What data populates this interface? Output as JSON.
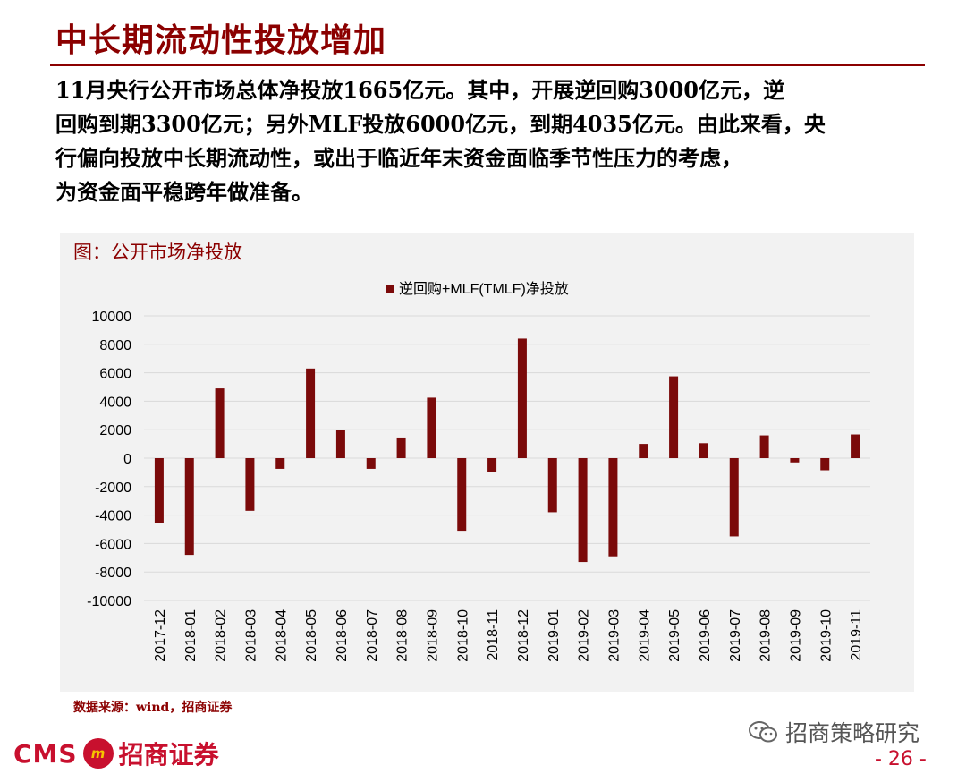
{
  "page": {
    "title": "中长期流动性投放增加",
    "body_lines": [
      "11月央行公开市场总体净投放1665亿元。其中，开展逆回购3000亿元，逆",
      "回购到期3300亿元；另外MLF投放6000亿元，到期4035亿元。由此来看，央",
      "行偏向投放中长期流动性，或出于临近年末资金面临季节性压力的考虑，",
      "为资金面平稳跨年做准备。"
    ],
    "source": "数据来源：wind，招商证券",
    "footer_brand_latin": "CMS",
    "footer_badge_glyph": "m",
    "footer_brand_cn": "招商证券",
    "wechat_account": "招商策略研究",
    "page_number": "- 26 -"
  },
  "colors": {
    "brand_red": "#8B0000",
    "bar": "#7B0A0A",
    "panel_bg": "#F2F2F2",
    "grid": "#D9D9D9"
  },
  "chart_data": {
    "type": "bar",
    "title": "图：公开市场净投放",
    "legend": "逆回购+MLF(TMLF)净投放",
    "legend_position": "top-center",
    "grid": true,
    "ylim": [
      -10000,
      10000
    ],
    "yticks": [
      10000,
      8000,
      6000,
      4000,
      2000,
      0,
      -2000,
      -4000,
      -6000,
      -8000,
      -10000
    ],
    "categories": [
      "2017-12",
      "2018-01",
      "2018-02",
      "2018-03",
      "2018-04",
      "2018-05",
      "2018-06",
      "2018-07",
      "2018-08",
      "2018-09",
      "2018-10",
      "2018-11",
      "2018-12",
      "2019-01",
      "2019-02",
      "2019-03",
      "2019-04",
      "2019-05",
      "2019-06",
      "2019-07",
      "2019-08",
      "2019-09",
      "2019-10",
      "2019-11"
    ],
    "series": [
      {
        "name": "逆回购+MLF(TMLF)净投放",
        "values": [
          -4550,
          -6800,
          4900,
          -3700,
          -750,
          6300,
          1950,
          -750,
          1450,
          4250,
          -5100,
          -1000,
          8400,
          -3800,
          -7300,
          -6900,
          1000,
          5750,
          1050,
          -5500,
          1600,
          -300,
          -850,
          1665
        ]
      }
    ]
  }
}
